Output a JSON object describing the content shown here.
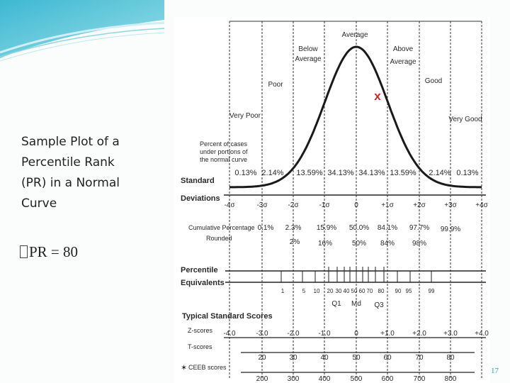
{
  "slide": {
    "caption": "Sample Plot of a\nPercentile Rank\n(PR) in a Normal\nCurve",
    "bullet": "PR = 80",
    "page_number": "17"
  },
  "figure": {
    "marker": "x",
    "curve_labels": {
      "average": "Average",
      "below_average": [
        "Below",
        "Average"
      ],
      "above_average": [
        "Above",
        "Average"
      ],
      "poor": "Poor",
      "good": "Good",
      "very_poor": "Very Poor",
      "very_good": "Very Good"
    },
    "percent_cases_label": [
      "Percent of cases",
      "under portions of",
      "the normal curve"
    ],
    "percents": [
      "0.13%",
      "2.14%",
      "13.59%",
      "34.13%",
      "34.13%",
      "13.59%",
      "2.14%",
      "0.13%"
    ],
    "sd_label": [
      "Standard",
      "Deviations"
    ],
    "sd_ticks": [
      "-4σ",
      "-3σ",
      "-2σ",
      "-1σ",
      "0",
      "+1σ",
      "+2σ",
      "+3σ",
      "+4σ"
    ],
    "cumulative_label": "Cumulative Percentage",
    "cumulative": [
      "0.1%",
      "2.3%",
      "15.9%",
      "50.0%",
      "84.1%",
      "97.7%",
      "99.9%"
    ],
    "rounded_label": "Rounded",
    "rounded": [
      "2%",
      "16%",
      "50%",
      "84%",
      "98%"
    ],
    "percentile_label": [
      "Percentile",
      "Equivalents"
    ],
    "percentile_ticks": [
      "1",
      "5",
      "10",
      "20",
      "30",
      "40",
      "50",
      "60",
      "70",
      "80",
      "90",
      "95",
      "99"
    ],
    "quartiles": [
      "Q1",
      "Md",
      "Q3"
    ],
    "typical_label": "Typical Standard Scores",
    "z_label": "Z-scores",
    "z_ticks": [
      "-4.0",
      "-3.0",
      "-2.0",
      "-1.0",
      "0",
      "+1.0",
      "+2.0",
      "+3.0",
      "+4.0"
    ],
    "t_label": "T-scores",
    "t_ticks": [
      "20",
      "30",
      "40",
      "50",
      "60",
      "70",
      "80"
    ],
    "ceeb_label": "CEEB scores",
    "ceeb_ticks": [
      "200",
      "300",
      "400",
      "500",
      "600",
      "700",
      "800"
    ]
  }
}
